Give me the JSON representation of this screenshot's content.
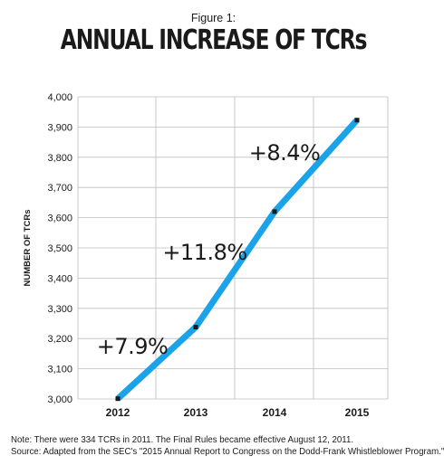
{
  "header": {
    "figure_label": "Figure 1:",
    "title": "ANNUAL INCREASE OF TCRs"
  },
  "chart_data": {
    "type": "line",
    "title": "ANNUAL INCREASE OF TCRs",
    "xlabel": "",
    "ylabel": "NUMBER OF TCRs",
    "categories": [
      "2012",
      "2013",
      "2014",
      "2015"
    ],
    "series": [
      {
        "values": [
          3001,
          3238,
          3620,
          3923
        ]
      }
    ],
    "ylim": [
      3000,
      4000
    ],
    "yticks": [
      3000,
      3100,
      3200,
      3300,
      3400,
      3500,
      3600,
      3700,
      3800,
      3900,
      4000
    ],
    "ytick_labels": [
      "3,000",
      "3,100",
      "3,200",
      "3,300",
      "3,400",
      "3,500",
      "3,600",
      "3,700",
      "3,800",
      "3,900",
      "4,000"
    ],
    "annotations": [
      "+7.9%",
      "+11.8%",
      "+8.4%"
    ],
    "grid": true,
    "colors": {
      "line": "#1aa3e8",
      "marker": "#1a1a1a",
      "grid": "#bdbdbd"
    }
  },
  "notes": {
    "line1": "Note: There were 334 TCRs in 2011. The Final Rules became effective August 12, 2011.",
    "line2": "Source: Adapted from the SEC's \"2015 Annual Report to Congress on the Dodd-Frank Whistleblower Program.\""
  }
}
